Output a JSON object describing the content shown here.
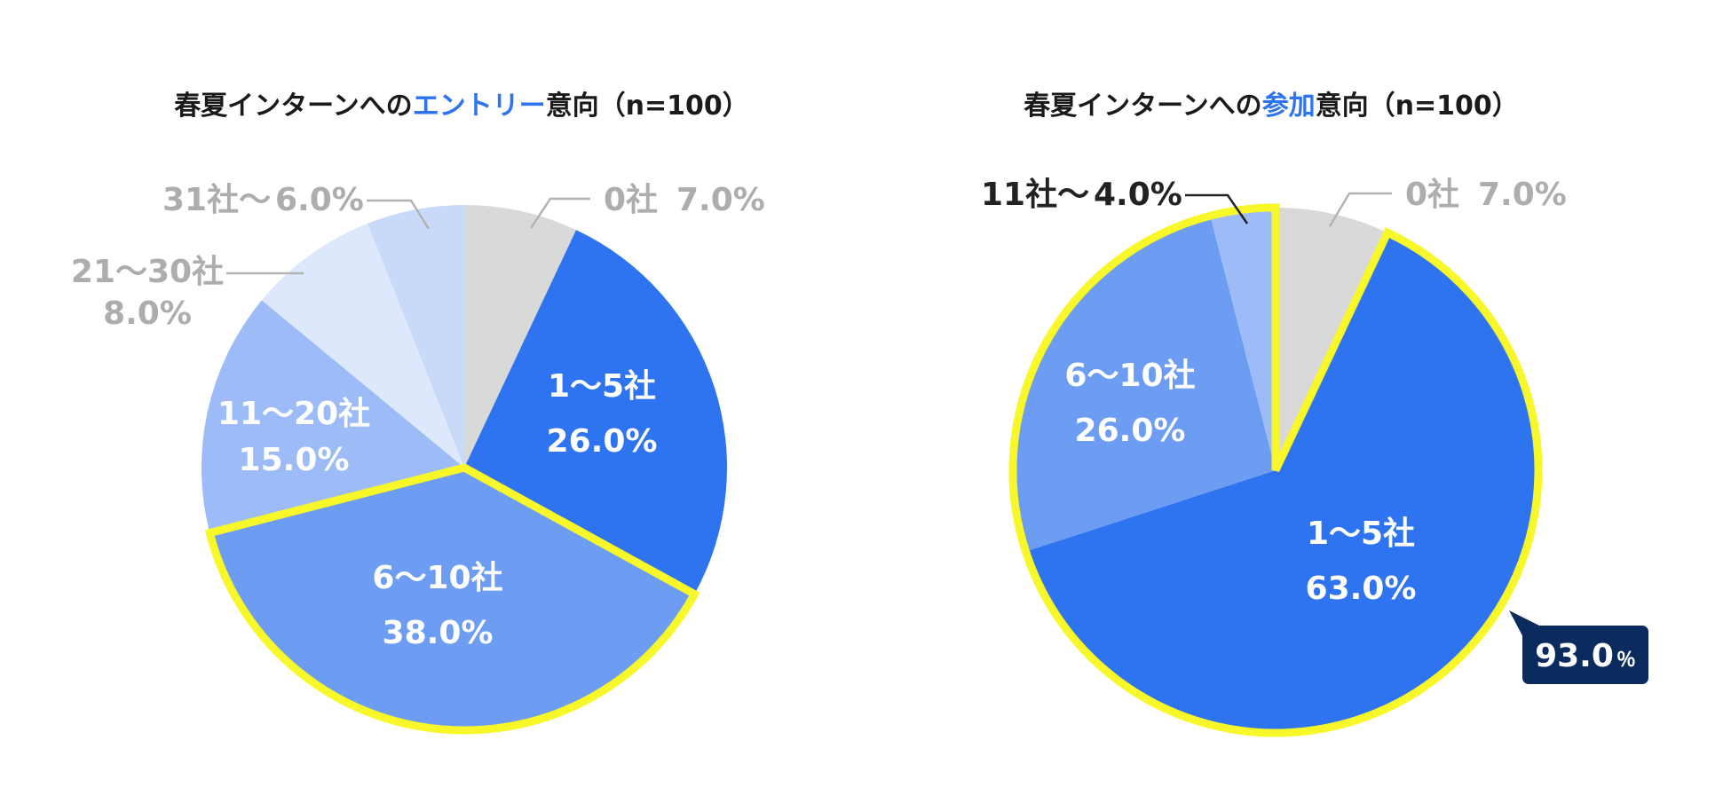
{
  "chart_data": [
    {
      "type": "pie",
      "title": {
        "prefix": "春夏インターンへの",
        "highlight": "エントリー",
        "suffix": "意向（n=100）"
      },
      "highlighted_slice": "6〜10社",
      "slices": [
        {
          "category": "0社",
          "value": 7.0,
          "value_label": "7.0%",
          "color": "#d9d9d9",
          "label_style": "gray"
        },
        {
          "category": "1〜5社",
          "value": 26.0,
          "value_label": "26.0%",
          "color": "#2e74f0",
          "label_style": "inside"
        },
        {
          "category": "6〜10社",
          "value": 38.0,
          "value_label": "38.0%",
          "color": "#6c9df2",
          "label_style": "inside"
        },
        {
          "category": "11〜20社",
          "value": 15.0,
          "value_label": "15.0%",
          "color": "#9dbcf7",
          "label_style": "inside"
        },
        {
          "category": "21〜30社",
          "value": 8.0,
          "value_label": "8.0%",
          "color": "#dde8fc",
          "label_style": "gray"
        },
        {
          "category": "31社〜",
          "value": 6.0,
          "value_label": "6.0%",
          "color": "#c9daf9",
          "label_style": "gray"
        }
      ]
    },
    {
      "type": "pie",
      "title": {
        "prefix": "春夏インターンへの",
        "highlight": "参加",
        "suffix": "意向（n=100）"
      },
      "highlighted_total": {
        "value": 93.0,
        "number": "93.0",
        "unit": "％",
        "slices": [
          "1〜5社",
          "6〜10社",
          "11社〜"
        ]
      },
      "slices": [
        {
          "category": "0社",
          "value": 7.0,
          "value_label": "7.0%",
          "color": "#d9d9d9",
          "label_style": "gray"
        },
        {
          "category": "1〜5社",
          "value": 63.0,
          "value_label": "63.0%",
          "color": "#2e74f0",
          "label_style": "inside"
        },
        {
          "category": "6〜10社",
          "value": 26.0,
          "value_label": "26.0%",
          "color": "#6c9df2",
          "label_style": "inside"
        },
        {
          "category": "11社〜",
          "value": 4.0,
          "value_label": "4.0%",
          "color": "#9dbcf7",
          "label_style": "dark"
        }
      ]
    }
  ],
  "colors": {
    "highlight_outline": "#f7f72a",
    "title_highlight": "#2e74f0",
    "callout_background": "#0b2a5e",
    "gray_label": "#adadad",
    "leader_gray": "#b3b3b3"
  }
}
